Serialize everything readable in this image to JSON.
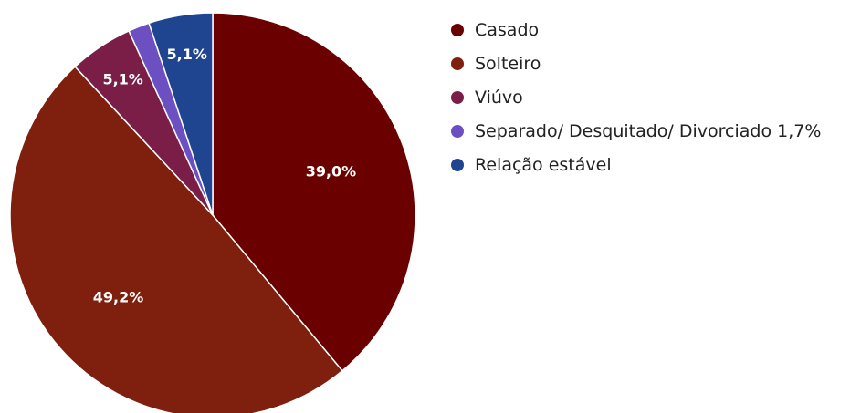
{
  "chart_data": {
    "type": "pie",
    "title": "",
    "categories": [
      "Casado",
      "Solteiro",
      "Viúvo",
      "Separado/ Desquitado/ Divorciado",
      "Relação estável"
    ],
    "values": [
      39.0,
      49.2,
      5.1,
      1.7,
      5.1
    ],
    "data_labels": [
      "39,0%",
      "49,2%",
      "5,1%",
      "",
      "5,1%"
    ],
    "legend_labels": [
      "Casado",
      "Solteiro",
      "Viúvo",
      "Separado/ Desquitado/ Divorciado 1,7%",
      "Relação estável"
    ],
    "colors": [
      "#6b0000",
      "#7f1f0e",
      "#7a1e48",
      "#6c4fc0",
      "#1f4490"
    ],
    "legend_position": "right",
    "start_angle": "top, clockwise"
  }
}
